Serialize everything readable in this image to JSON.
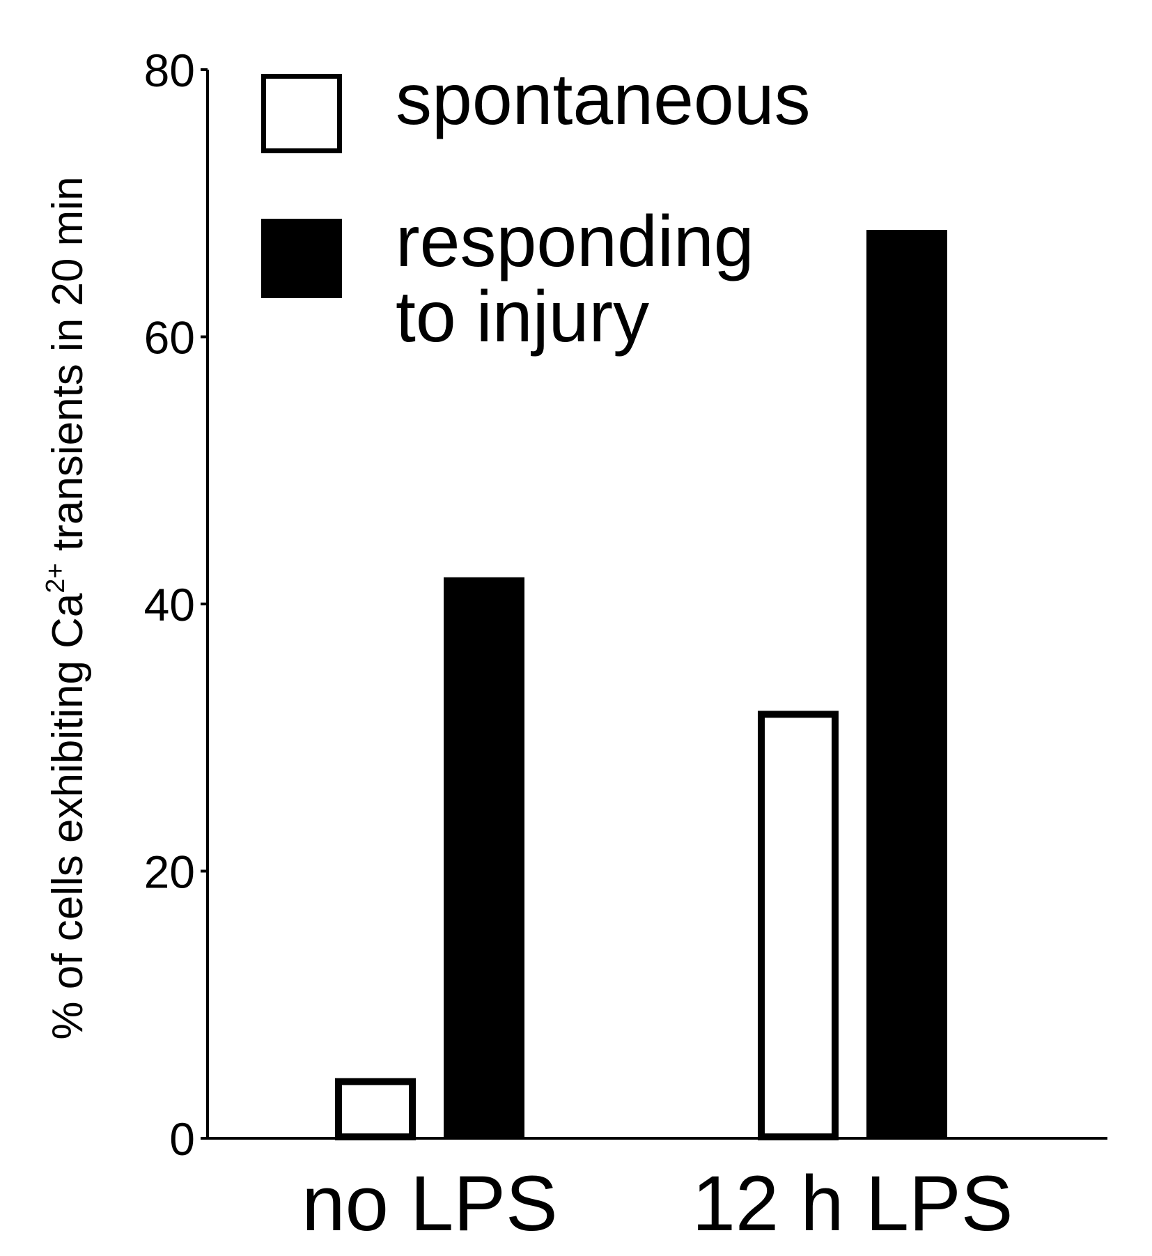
{
  "chart_data": {
    "type": "bar",
    "categories": [
      "no LPS",
      "12 h LPS"
    ],
    "series": [
      {
        "name": "spontaneous",
        "values": [
          4.5,
          32
        ],
        "fill": "#ffffff",
        "stroke": "#000000"
      },
      {
        "name": "responding to injury",
        "values": [
          42,
          68
        ],
        "fill": "#000000",
        "stroke": "#000000"
      }
    ],
    "legend": {
      "placement": "top-left",
      "entries": [
        {
          "label_lines": [
            "spontaneous"
          ]
        },
        {
          "label_lines": [
            "responding",
            "to injury"
          ]
        }
      ]
    },
    "ylabel": {
      "pre": "% of cells exhibiting Ca",
      "sup": "2+",
      "post": " transients in 20 min"
    },
    "xlabel": "",
    "ylim": [
      0,
      80
    ],
    "yticks": [
      0,
      20,
      40,
      60,
      80
    ],
    "grid": false
  }
}
